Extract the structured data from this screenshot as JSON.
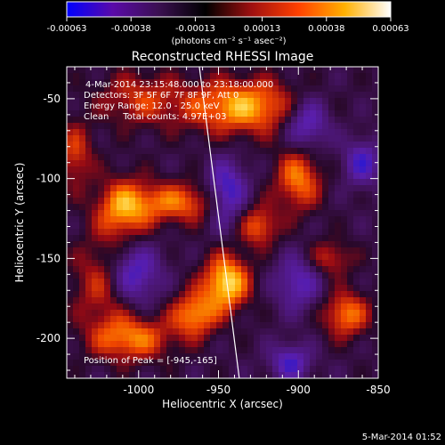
{
  "colorbar": {
    "ticks": [
      "-0.00063",
      "-0.00038",
      "-0.00013",
      "0.00013",
      "0.00038",
      "0.00063"
    ],
    "tick_values": [
      -0.00063,
      -0.00038,
      -0.00013,
      0.00013,
      0.00038,
      0.00063
    ],
    "range": [
      -0.00063,
      0.00063
    ],
    "unit_label": "(photons cm⁻² s⁻¹ asec⁻²)",
    "colors": [
      "#0000ff",
      "#5a0aa8",
      "#3a1050",
      "#000000",
      "#a01010",
      "#ff4000",
      "#ffb000",
      "#ffffff"
    ]
  },
  "chart_data": {
    "type": "heatmap",
    "title": "Reconstructed RHESSI Image",
    "xlabel": "Heliocentric X (arcsec)",
    "ylabel": "Heliocentric Y (arcsec)",
    "xlim": [
      -1045,
      -850
    ],
    "ylim": [
      -225,
      -30
    ],
    "xticks": [
      -1000,
      -950,
      -900,
      -850
    ],
    "xtick_labels": [
      "-1000",
      "-950",
      "-900",
      "-850"
    ],
    "yticks": [
      -200,
      -150,
      -100,
      -50
    ],
    "ytick_labels": [
      "-200",
      "-150",
      "-100",
      "-50"
    ],
    "annotations": [
      "4-Mar-2014 23:15:48.000 to 23:18:00.000",
      "Detectors: 3F 5F 6F 7F 8F 9F, Att 0",
      "Energy Range: 12.0 - 25.0 keV",
      "Clean     Total counts: 4.97E+03"
    ],
    "peak_label": "Position of Peak = [-945,-165]",
    "peak": [
      -945,
      -165
    ],
    "limb_line": [
      [
        -962,
        -30
      ],
      [
        -937,
        -225
      ]
    ],
    "sources": [
      {
        "x": -945,
        "y": -165,
        "sx": 10,
        "sy": 12,
        "amp": 1.0
      },
      {
        "x": -975,
        "y": -115,
        "sx": 22,
        "sy": 9,
        "amp": 0.65
      },
      {
        "x": -1010,
        "y": -120,
        "sx": 12,
        "sy": 14,
        "amp": 0.7
      },
      {
        "x": -1020,
        "y": -165,
        "sx": 14,
        "sy": 18,
        "amp": 0.6
      },
      {
        "x": -965,
        "y": -185,
        "sx": 10,
        "sy": 10,
        "amp": 0.75
      },
      {
        "x": -1005,
        "y": -200,
        "sx": 18,
        "sy": 10,
        "amp": 0.7
      },
      {
        "x": -935,
        "y": -55,
        "sx": 26,
        "sy": 12,
        "amp": 0.85
      },
      {
        "x": -900,
        "y": -100,
        "sx": 10,
        "sy": 14,
        "amp": 0.7
      },
      {
        "x": -925,
        "y": -130,
        "sx": 9,
        "sy": 9,
        "amp": 0.6
      },
      {
        "x": -870,
        "y": -185,
        "sx": 10,
        "sy": 10,
        "amp": 0.7
      },
      {
        "x": -880,
        "y": -150,
        "sx": 10,
        "sy": 8,
        "amp": 0.45
      },
      {
        "x": -1000,
        "y": -50,
        "sx": 18,
        "sy": 12,
        "amp": 0.45
      },
      {
        "x": -1040,
        "y": -85,
        "sx": 8,
        "sy": 14,
        "amp": 0.5
      }
    ],
    "negative_regions": [
      {
        "x": -1005,
        "y": -160,
        "sx": 12,
        "sy": 14,
        "amp": 0.85
      },
      {
        "x": -945,
        "y": -110,
        "sx": 9,
        "sy": 14,
        "amp": 0.8
      },
      {
        "x": -895,
        "y": -65,
        "sx": 10,
        "sy": 12,
        "amp": 0.7
      },
      {
        "x": -860,
        "y": -90,
        "sx": 8,
        "sy": 10,
        "amp": 0.6
      },
      {
        "x": -900,
        "y": -165,
        "sx": 10,
        "sy": 12,
        "amp": 0.55
      },
      {
        "x": -905,
        "y": -215,
        "sx": 9,
        "sy": 8,
        "amp": 0.6
      }
    ]
  },
  "footer": {
    "timestamp": "5-Mar-2014 01:52"
  }
}
